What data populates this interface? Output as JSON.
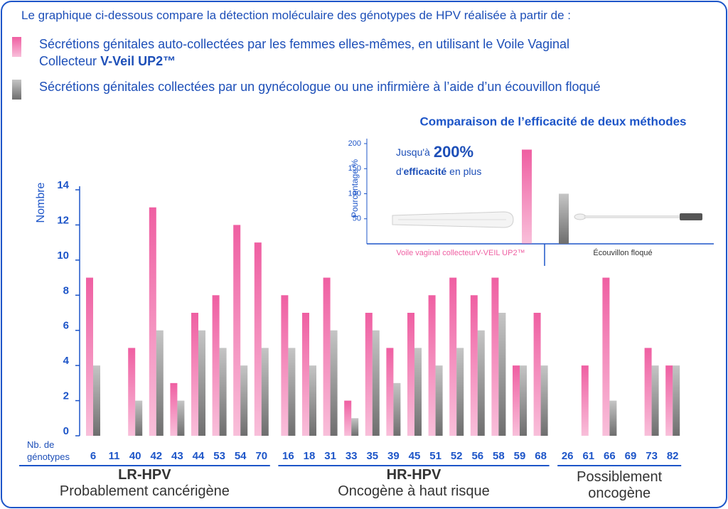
{
  "intro": "Le graphique ci-dessous compare la détection moléculaire des génotypes de HPV réalisée à partir de :",
  "chart_data": [
    {
      "type": "bar",
      "y_label": "Nombre",
      "x_label": "Nb. de génotypes",
      "groups": [
        {
          "name": "LR-HPV",
          "description": "Probablement cancérigène",
          "categories": [
            "6",
            "11",
            "40",
            "42",
            "43",
            "44",
            "53",
            "54",
            "70"
          ]
        },
        {
          "name": "HR-HPV",
          "description": "Oncogène à haut risque",
          "categories": [
            "16",
            "18",
            "31",
            "33",
            "35",
            "39",
            "45",
            "51",
            "52",
            "56",
            "58",
            "59",
            "68"
          ]
        },
        {
          "description": "Possiblement oncogène",
          "categories": [
            "26",
            "61",
            "66",
            "69",
            "73",
            "82"
          ]
        }
      ],
      "series": [
        {
          "name": "Sécrétions génitales auto-collectées par les femmes elles-mêmes, en utilisant le Voile Vaginal Collecteur",
          "name_emphasis": "V-Veil UP2™",
          "color": "#ef5fa2",
          "values": [
            9,
            0,
            5,
            13,
            3,
            7,
            8,
            12,
            11,
            8,
            7,
            9,
            2,
            7,
            5,
            7,
            8,
            9,
            8,
            9,
            4,
            7,
            0,
            4,
            9,
            0,
            5,
            4
          ]
        },
        {
          "name": "Sécrétions génitales collectées par un gynécologue ou une infirmière à l’aide d’un écouvillon floqué",
          "color": "#6e6e6e",
          "values": [
            4,
            0,
            2,
            6,
            2,
            6,
            5,
            4,
            5,
            5,
            4,
            6,
            1,
            6,
            3,
            5,
            4,
            5,
            6,
            7,
            4,
            4,
            0,
            0,
            2,
            0,
            4,
            4
          ]
        }
      ],
      "ylim": [
        0,
        14
      ],
      "yticks": [
        0,
        2,
        4,
        6,
        8,
        10,
        12,
        14
      ]
    },
    {
      "type": "bar",
      "title": "Comparaison de l’efficacité de deux méthodes",
      "y_label": "Pourcentage %",
      "annotation": [
        "Jusqu'à",
        "200%",
        "d'",
        "efficacité",
        "en plus"
      ],
      "categories": [
        "Voile vaginal collecteurV-VEIL UP2™",
        "Écouvillon floqué"
      ],
      "values": [
        188,
        100
      ],
      "colors": [
        "#ef5fa2",
        "#6e6e6e"
      ],
      "ylim": [
        0,
        200
      ],
      "yticks": [
        50,
        100,
        150,
        200
      ]
    }
  ]
}
